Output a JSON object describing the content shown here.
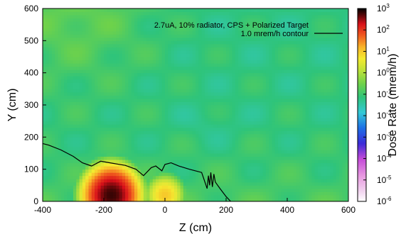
{
  "chart_data": {
    "type": "heatmap",
    "title": "",
    "xlabel": "Z (cm)",
    "ylabel": "Y (cm)",
    "xlim": [
      -400,
      600
    ],
    "ylim": [
      0,
      600
    ],
    "x_ticks": [
      "-400",
      "-200",
      "0",
      "200",
      "400",
      "600"
    ],
    "y_ticks": [
      "0",
      "100",
      "200",
      "300",
      "400",
      "500",
      "600"
    ],
    "colorbar": {
      "label": "Dose Rate (mrem/h)",
      "scale": "log",
      "range_exponents": [
        -6,
        3
      ],
      "tick_exponents": [
        3,
        2,
        1,
        0,
        -1,
        -2,
        -3,
        -4,
        -5,
        -6
      ],
      "base": "10"
    },
    "legend": {
      "placement": "top-right",
      "entries": [
        {
          "label": "2.7uA, 10% radiator, CPS + Polarized Target",
          "style": "none"
        },
        {
          "label": "1.0 mrem/h contour",
          "style": "line",
          "color": "#000000"
        }
      ]
    },
    "contour": {
      "name": "1.0 mrem/h contour",
      "level_mrem_per_h": 1.0,
      "points": [
        [
          -400,
          180
        ],
        [
          -380,
          175
        ],
        [
          -340,
          160
        ],
        [
          -300,
          140
        ],
        [
          -270,
          120
        ],
        [
          -240,
          110
        ],
        [
          -210,
          125
        ],
        [
          -180,
          120
        ],
        [
          -130,
          112
        ],
        [
          -95,
          100
        ],
        [
          -70,
          80
        ],
        [
          -45,
          105
        ],
        [
          -30,
          110
        ],
        [
          -10,
          95
        ],
        [
          0,
          115
        ],
        [
          20,
          120
        ],
        [
          45,
          110
        ],
        [
          80,
          100
        ],
        [
          120,
          90
        ],
        [
          138,
          40
        ],
        [
          142,
          80
        ],
        [
          146,
          50
        ],
        [
          150,
          90
        ],
        [
          155,
          45
        ],
        [
          160,
          85
        ],
        [
          165,
          60
        ],
        [
          180,
          40
        ],
        [
          200,
          15
        ],
        [
          215,
          0
        ]
      ]
    },
    "hotspots": [
      {
        "z": -175,
        "y": 20,
        "log10_dose": 2.8,
        "spread_z": 70,
        "spread_y": 70
      },
      {
        "z": 0,
        "y": 20,
        "log10_dose": 1.0,
        "spread_z": 55,
        "spread_y": 55
      }
    ],
    "background_log10_dose": -1.2
  }
}
